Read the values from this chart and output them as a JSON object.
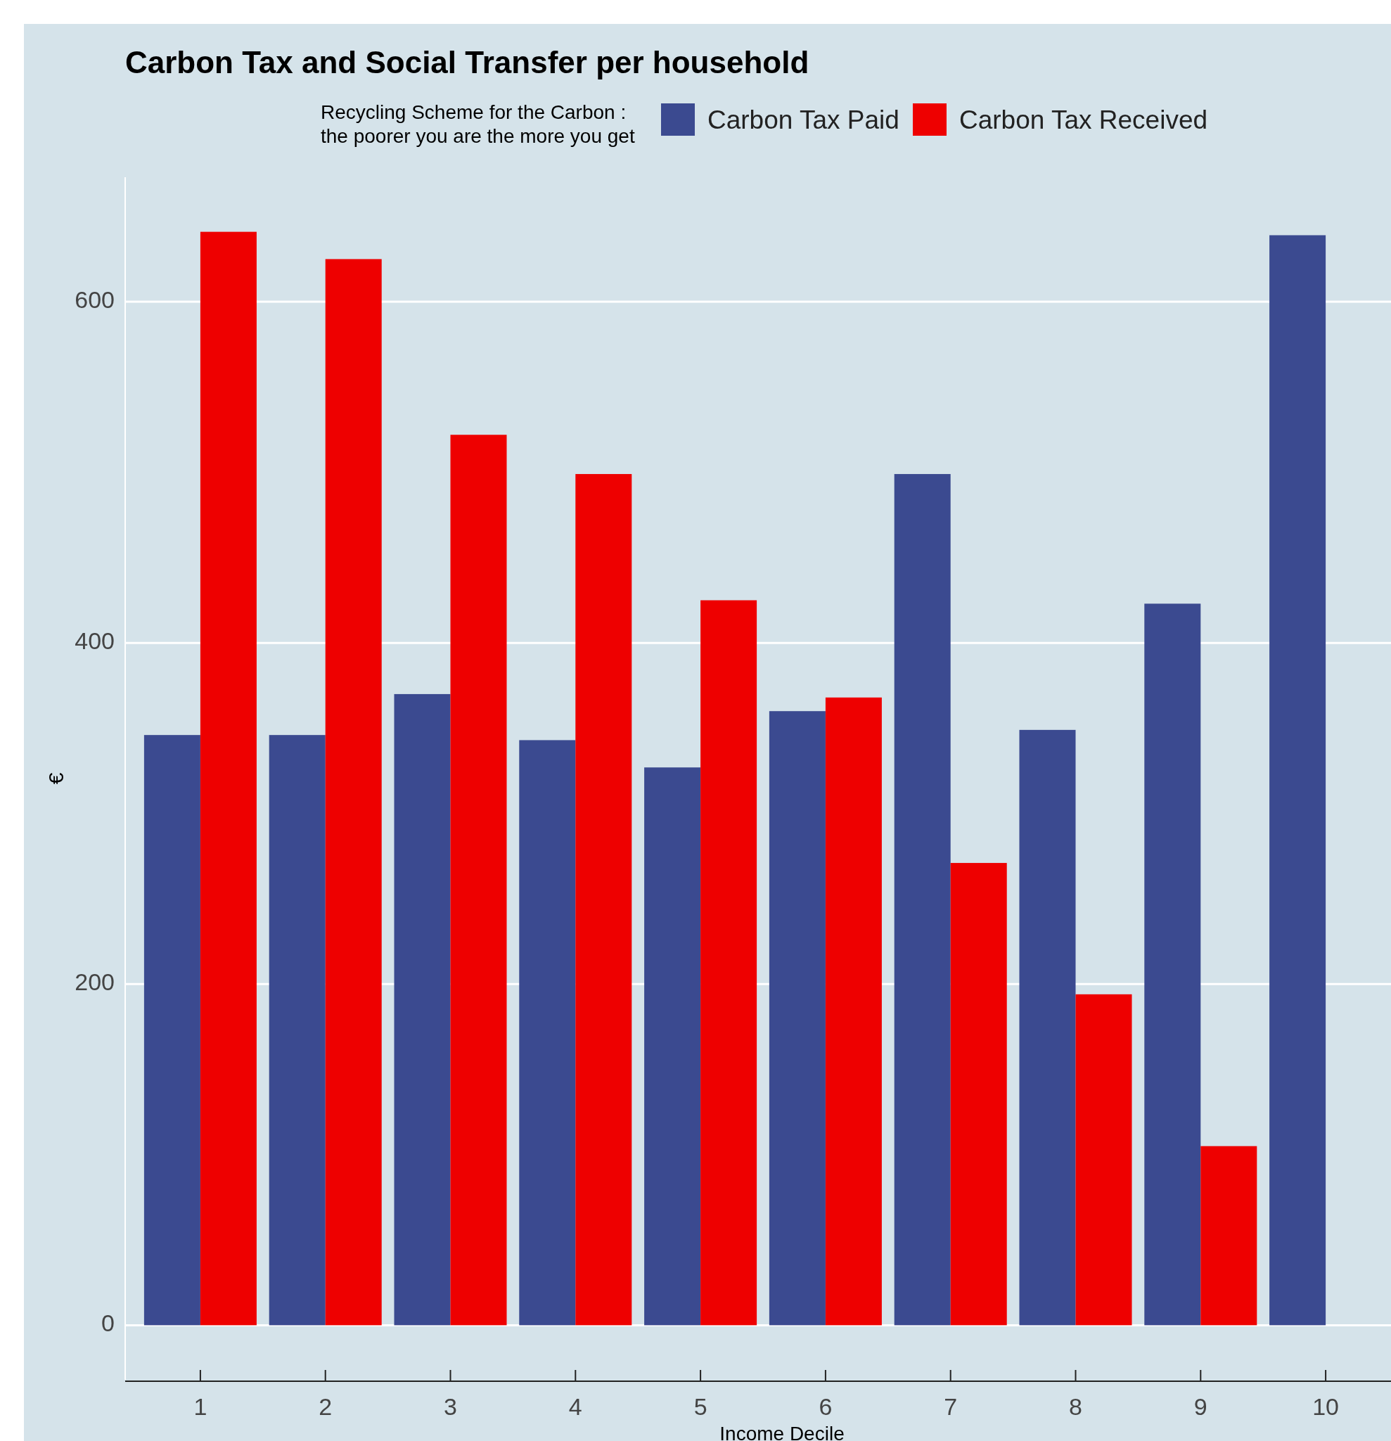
{
  "chart_data": {
    "type": "bar",
    "title": "Carbon Tax and Social Transfer per household",
    "legend_title": "Recycling Scheme for the Carbon :\nthe poorer you are the more you get",
    "xlabel": "Income Decile",
    "ylabel": "€",
    "categories": [
      "1",
      "2",
      "3",
      "4",
      "5",
      "6",
      "7",
      "8",
      "9",
      "10"
    ],
    "series": [
      {
        "name": "Carbon Tax Paid",
        "color": "#3b4a90",
        "values": [
          346,
          346,
          370,
          343,
          327,
          360,
          499,
          349,
          423,
          639
        ]
      },
      {
        "name": "Carbon Tax Received",
        "color": "#ee0000",
        "values": [
          641,
          625,
          522,
          499,
          425,
          368,
          271,
          194,
          105,
          null
        ]
      }
    ],
    "ylim": [
      -32,
      673
    ],
    "yticks": [
      0,
      200,
      400,
      600
    ],
    "grid": "y",
    "legend": "top"
  }
}
